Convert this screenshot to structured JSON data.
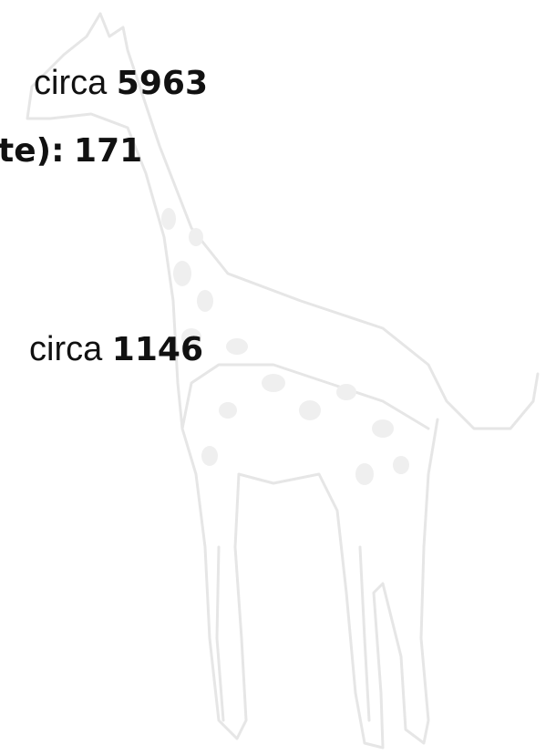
{
  "lines": [
    {
      "label": "circa",
      "value": 5963
    },
    {
      "label": "te):",
      "value": 171
    },
    {
      "label": "circa",
      "value": 1146
    }
  ]
}
